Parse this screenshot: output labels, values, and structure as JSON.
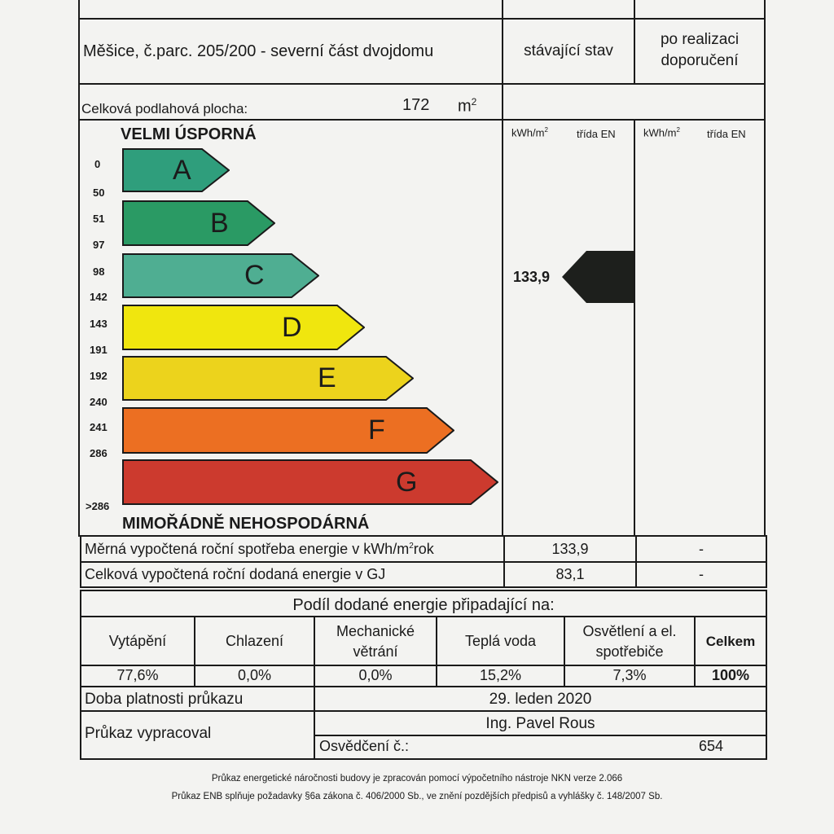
{
  "header": {
    "property": "Měšice, č.parc. 205/200 - severní část dvojdomu",
    "col_current": "stávající stav",
    "col_after_line1": "po realizaci",
    "col_after_line2": "doporučení"
  },
  "floor_area": {
    "label": "Celková podlahová plocha:",
    "value": "172",
    "unit": "m",
    "unit_sup": "2"
  },
  "scale": {
    "top_label": "VELMI ÚSPORNÁ",
    "bottom_label": "MIMOŘÁDNĚ NEHOSPODÁRNÁ",
    "unit_header": "kWh/m",
    "unit_header_sup": "2",
    "class_header": "třída EN",
    "unit_header_2": "kWh/m",
    "unit_header_2_sup": "2",
    "class_header_2": "třída EN",
    "classes": [
      {
        "letter": "A",
        "from": "0",
        "to": "50",
        "color": "#2f9e7c"
      },
      {
        "letter": "B",
        "from": "51",
        "to": "97",
        "color": "#2a9a64"
      },
      {
        "letter": "C",
        "from": "98",
        "to": "142",
        "color": "#4fae92"
      },
      {
        "letter": "D",
        "from": "143",
        "to": "191",
        "color": "#f0e60e"
      },
      {
        "letter": "E",
        "from": "192",
        "to": "240",
        "color": "#ecd31c"
      },
      {
        "letter": "F",
        "from": "241",
        "to": "286",
        "color": "#ec6f22"
      },
      {
        "letter": "G",
        "from": ">286",
        "to": "",
        "color": "#cc3a2e"
      }
    ],
    "current_value": "133,9",
    "marker_color": "#1d1f1c"
  },
  "rows": {
    "specific_label": "Měrná vypočtená roční spotřeba energie v kWh/m",
    "specific_label_sup": "2",
    "specific_label_end": "rok",
    "specific_current": "133,9",
    "specific_after": "-",
    "total_label": "Celková vypočtená roční dodaná energie v GJ",
    "total_current": "83,1",
    "total_after": "-"
  },
  "share": {
    "title": "Podíl dodané energie připadající na:",
    "columns": [
      {
        "l1": "Vytápění",
        "l2": "",
        "value": "77,6%"
      },
      {
        "l1": "Chlazení",
        "l2": "",
        "value": "0,0%"
      },
      {
        "l1": "Mechanické",
        "l2": "větrání",
        "value": "0,0%"
      },
      {
        "l1": "Teplá voda",
        "l2": "",
        "value": "15,2%"
      },
      {
        "l1": "Osvětlení a el.",
        "l2": "spotřebiče",
        "value": "7,3%"
      }
    ],
    "total_label": "Celkem",
    "total_value": "100%"
  },
  "validity": {
    "label": "Doba platnosti průkazu",
    "value": "29. leden 2020"
  },
  "author": {
    "label": "Průkaz vypracoval",
    "name": "Ing. Pavel Rous",
    "cert_label": "Osvědčení č.:",
    "cert_number": "654"
  },
  "footer": {
    "line1": "Průkaz energetické náročnosti budovy je zpracován pomocí výpočetního nástroje NKN verze 2.066",
    "line2": "Průkaz ENB splňuje požadavky §6a zákona č. 406/2000 Sb., ve znění pozdějších předpisů a vyhlášky č. 148/2007 Sb."
  }
}
